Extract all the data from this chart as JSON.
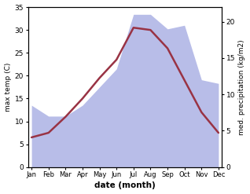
{
  "months": [
    "Jan",
    "Feb",
    "Mar",
    "Apr",
    "May",
    "Jun",
    "Jul",
    "Aug",
    "Sep",
    "Oct",
    "Nov",
    "Dec"
  ],
  "month_positions": [
    0,
    1,
    2,
    3,
    4,
    5,
    6,
    7,
    8,
    9,
    10,
    11
  ],
  "max_temp": [
    6.5,
    7.5,
    11.0,
    15.0,
    19.5,
    23.5,
    30.5,
    30.0,
    26.0,
    19.0,
    12.0,
    7.5
  ],
  "precipitation": [
    8.5,
    7.0,
    7.0,
    8.5,
    11.0,
    13.5,
    21.0,
    21.0,
    19.0,
    19.5,
    12.0,
    11.5
  ],
  "temp_color": "#993344",
  "precip_fill_color": "#b8bde8",
  "temp_ylim": [
    0,
    35
  ],
  "precip_ylim": [
    0,
    22
  ],
  "temp_yticks": [
    0,
    5,
    10,
    15,
    20,
    25,
    30,
    35
  ],
  "precip_yticks": [
    0,
    5,
    10,
    15,
    20
  ],
  "xlabel": "date (month)",
  "ylabel_left": "max temp (C)",
  "ylabel_right": "med. precipitation (kg/m2)",
  "background_color": "#ffffff"
}
